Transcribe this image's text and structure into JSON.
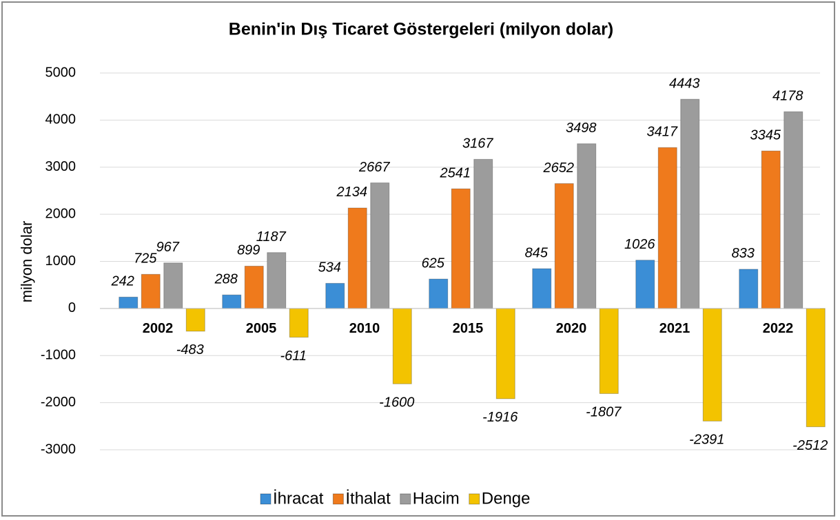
{
  "chart_data": {
    "type": "bar",
    "title": "Benin'in Dış Ticaret Göstergeleri  (milyon dolar)",
    "ylabel": "milyon dolar",
    "categories": [
      "2002",
      "2005",
      "2010",
      "2015",
      "2020",
      "2021",
      "2022"
    ],
    "series": [
      {
        "name": "İhracat",
        "color": "#3b8ed6",
        "values": [
          242,
          288,
          534,
          625,
          845,
          1026,
          833
        ]
      },
      {
        "name": "İthalat",
        "color": "#ef7a1c",
        "values": [
          725,
          899,
          2134,
          2541,
          2652,
          3417,
          3345
        ]
      },
      {
        "name": "Hacim",
        "color": "#9c9c9c",
        "values": [
          967,
          1187,
          2667,
          3167,
          3498,
          4443,
          4178
        ]
      },
      {
        "name": "Denge",
        "color": "#f3c300",
        "values": [
          -483,
          -611,
          -1600,
          -1916,
          -1807,
          -2391,
          -2512
        ]
      }
    ],
    "ylim": [
      -3000,
      5000
    ],
    "yticks": [
      -3000,
      -2000,
      -1000,
      0,
      1000,
      2000,
      3000,
      4000,
      5000
    ],
    "grid": true,
    "legend": "bottom"
  }
}
